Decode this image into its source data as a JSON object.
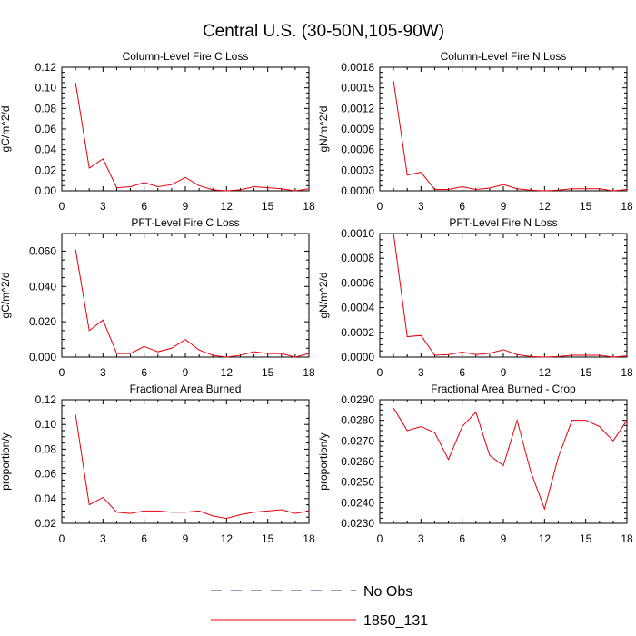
{
  "figure": {
    "title": "Central U.S. (30-50N,105-90W)"
  },
  "legend": {
    "entries": [
      {
        "label": "No Obs",
        "color": "#3030a0",
        "style": "dashed"
      },
      {
        "label": "1850_131",
        "color": "#e8000b",
        "style": "solid"
      }
    ]
  },
  "chart_data": [
    {
      "type": "line",
      "title": "Column-Level Fire C Loss",
      "ylabel": "gC/m^2/d",
      "xlim": [
        0,
        18
      ],
      "ylim": [
        0,
        0.12
      ],
      "xticks": [
        0,
        3,
        6,
        9,
        12,
        15,
        18
      ],
      "yticks": [
        0,
        0.02,
        0.04,
        0.06,
        0.08,
        0.1,
        0.12
      ],
      "ytick_labels": [
        "0.00",
        "0.02",
        "0.04",
        "0.06",
        "0.08",
        "0.10",
        "0.12"
      ],
      "x": [
        1,
        2,
        3,
        4,
        5,
        6,
        7,
        8,
        9,
        10,
        11,
        12,
        13,
        14,
        15,
        16,
        17,
        18
      ],
      "series": [
        {
          "name": "1850_131",
          "color": "#e8000b",
          "values": [
            0.105,
            0.022,
            0.031,
            0.003,
            0.004,
            0.008,
            0.004,
            0.006,
            0.013,
            0.005,
            0.001,
            0.0,
            0.001,
            0.004,
            0.003,
            0.002,
            0.0,
            0.002
          ]
        }
      ]
    },
    {
      "type": "line",
      "title": "Column-Level Fire N Loss",
      "ylabel": "gN/m^2/d",
      "xlim": [
        0,
        18
      ],
      "ylim": [
        0,
        0.0018
      ],
      "xticks": [
        0,
        3,
        6,
        9,
        12,
        15,
        18
      ],
      "yticks": [
        0,
        0.0003,
        0.0006,
        0.0009,
        0.0012,
        0.0015,
        0.0018
      ],
      "ytick_labels": [
        "0.0000",
        "0.0003",
        "0.0006",
        "0.0009",
        "0.0012",
        "0.0015",
        "0.0018"
      ],
      "x": [
        1,
        2,
        3,
        4,
        5,
        6,
        7,
        8,
        9,
        10,
        11,
        12,
        13,
        14,
        15,
        16,
        17,
        18
      ],
      "series": [
        {
          "name": "1850_131",
          "color": "#e8000b",
          "values": [
            0.0016,
            0.00023,
            0.00027,
            2e-05,
            2e-05,
            6e-05,
            2e-05,
            4e-05,
            9e-05,
            3e-05,
            1e-05,
            0.0,
            1e-05,
            3e-05,
            3e-05,
            3e-05,
            0.0,
            2e-05
          ]
        }
      ]
    },
    {
      "type": "line",
      "title": "PFT-Level Fire C Loss",
      "ylabel": "gC/m^2/d",
      "xlim": [
        0,
        18
      ],
      "ylim": [
        0,
        0.07
      ],
      "xticks": [
        0,
        3,
        6,
        9,
        12,
        15,
        18
      ],
      "yticks": [
        0,
        0.02,
        0.04,
        0.06
      ],
      "ytick_labels": [
        "0.000",
        "0.020",
        "0.040",
        "0.060"
      ],
      "x": [
        1,
        2,
        3,
        4,
        5,
        6,
        7,
        8,
        9,
        10,
        11,
        12,
        13,
        14,
        15,
        16,
        17,
        18
      ],
      "series": [
        {
          "name": "1850_131",
          "color": "#e8000b",
          "values": [
            0.061,
            0.015,
            0.021,
            0.002,
            0.002,
            0.006,
            0.003,
            0.005,
            0.01,
            0.004,
            0.001,
            0.0,
            0.001,
            0.003,
            0.002,
            0.002,
            0.0,
            0.002
          ]
        }
      ]
    },
    {
      "type": "line",
      "title": "PFT-Level Fire N Loss",
      "ylabel": "gN/m^2/d",
      "xlim": [
        0,
        18
      ],
      "ylim": [
        0,
        0.001
      ],
      "xticks": [
        0,
        3,
        6,
        9,
        12,
        15,
        18
      ],
      "yticks": [
        0,
        0.0002,
        0.0004,
        0.0006,
        0.0008,
        0.001
      ],
      "ytick_labels": [
        "0.0000",
        "0.0002",
        "0.0004",
        "0.0006",
        "0.0008",
        "0.0010"
      ],
      "x": [
        1,
        2,
        3,
        4,
        5,
        6,
        7,
        8,
        9,
        10,
        11,
        12,
        13,
        14,
        15,
        16,
        17,
        18
      ],
      "series": [
        {
          "name": "1850_131",
          "color": "#e8000b",
          "values": [
            0.001,
            0.000165,
            0.000175,
            1.5e-05,
            2e-05,
            4e-05,
            2e-05,
            3e-05,
            6e-05,
            2e-05,
            5e-06,
            0.0,
            5e-06,
            1.5e-05,
            1.5e-05,
            1.5e-05,
            0.0,
            1e-05
          ]
        }
      ]
    },
    {
      "type": "line",
      "title": "Fractional Area Burned",
      "ylabel": "proportion/y",
      "xlim": [
        0,
        18
      ],
      "ylim": [
        0.02,
        0.12
      ],
      "xticks": [
        0,
        3,
        6,
        9,
        12,
        15,
        18
      ],
      "yticks": [
        0.02,
        0.04,
        0.06,
        0.08,
        0.1,
        0.12
      ],
      "ytick_labels": [
        "0.02",
        "0.04",
        "0.06",
        "0.08",
        "0.10",
        "0.12"
      ],
      "x": [
        1,
        2,
        3,
        4,
        5,
        6,
        7,
        8,
        9,
        10,
        11,
        12,
        13,
        14,
        15,
        16,
        17,
        18
      ],
      "series": [
        {
          "name": "1850_131",
          "color": "#e8000b",
          "values": [
            0.108,
            0.035,
            0.041,
            0.029,
            0.028,
            0.03,
            0.03,
            0.029,
            0.029,
            0.03,
            0.026,
            0.024,
            0.027,
            0.029,
            0.03,
            0.031,
            0.028,
            0.03
          ]
        }
      ]
    },
    {
      "type": "line",
      "title": "Fractional Area Burned - Crop",
      "ylabel": "proportion/y",
      "xlim": [
        0,
        18
      ],
      "ylim": [
        0.023,
        0.029
      ],
      "xticks": [
        0,
        3,
        6,
        9,
        12,
        15,
        18
      ],
      "yticks": [
        0.023,
        0.024,
        0.025,
        0.026,
        0.027,
        0.028,
        0.029
      ],
      "ytick_labels": [
        "0.0230",
        "0.0240",
        "0.0250",
        "0.0260",
        "0.0270",
        "0.0280",
        "0.0290"
      ],
      "x": [
        1,
        2,
        3,
        4,
        5,
        6,
        7,
        8,
        9,
        10,
        11,
        12,
        13,
        14,
        15,
        16,
        17,
        18
      ],
      "series": [
        {
          "name": "1850_131",
          "color": "#e8000b",
          "values": [
            0.0286,
            0.0275,
            0.0277,
            0.0274,
            0.0261,
            0.0277,
            0.0284,
            0.0263,
            0.0258,
            0.028,
            0.0255,
            0.0237,
            0.0262,
            0.028,
            0.028,
            0.0277,
            0.027,
            0.028
          ]
        }
      ]
    }
  ]
}
